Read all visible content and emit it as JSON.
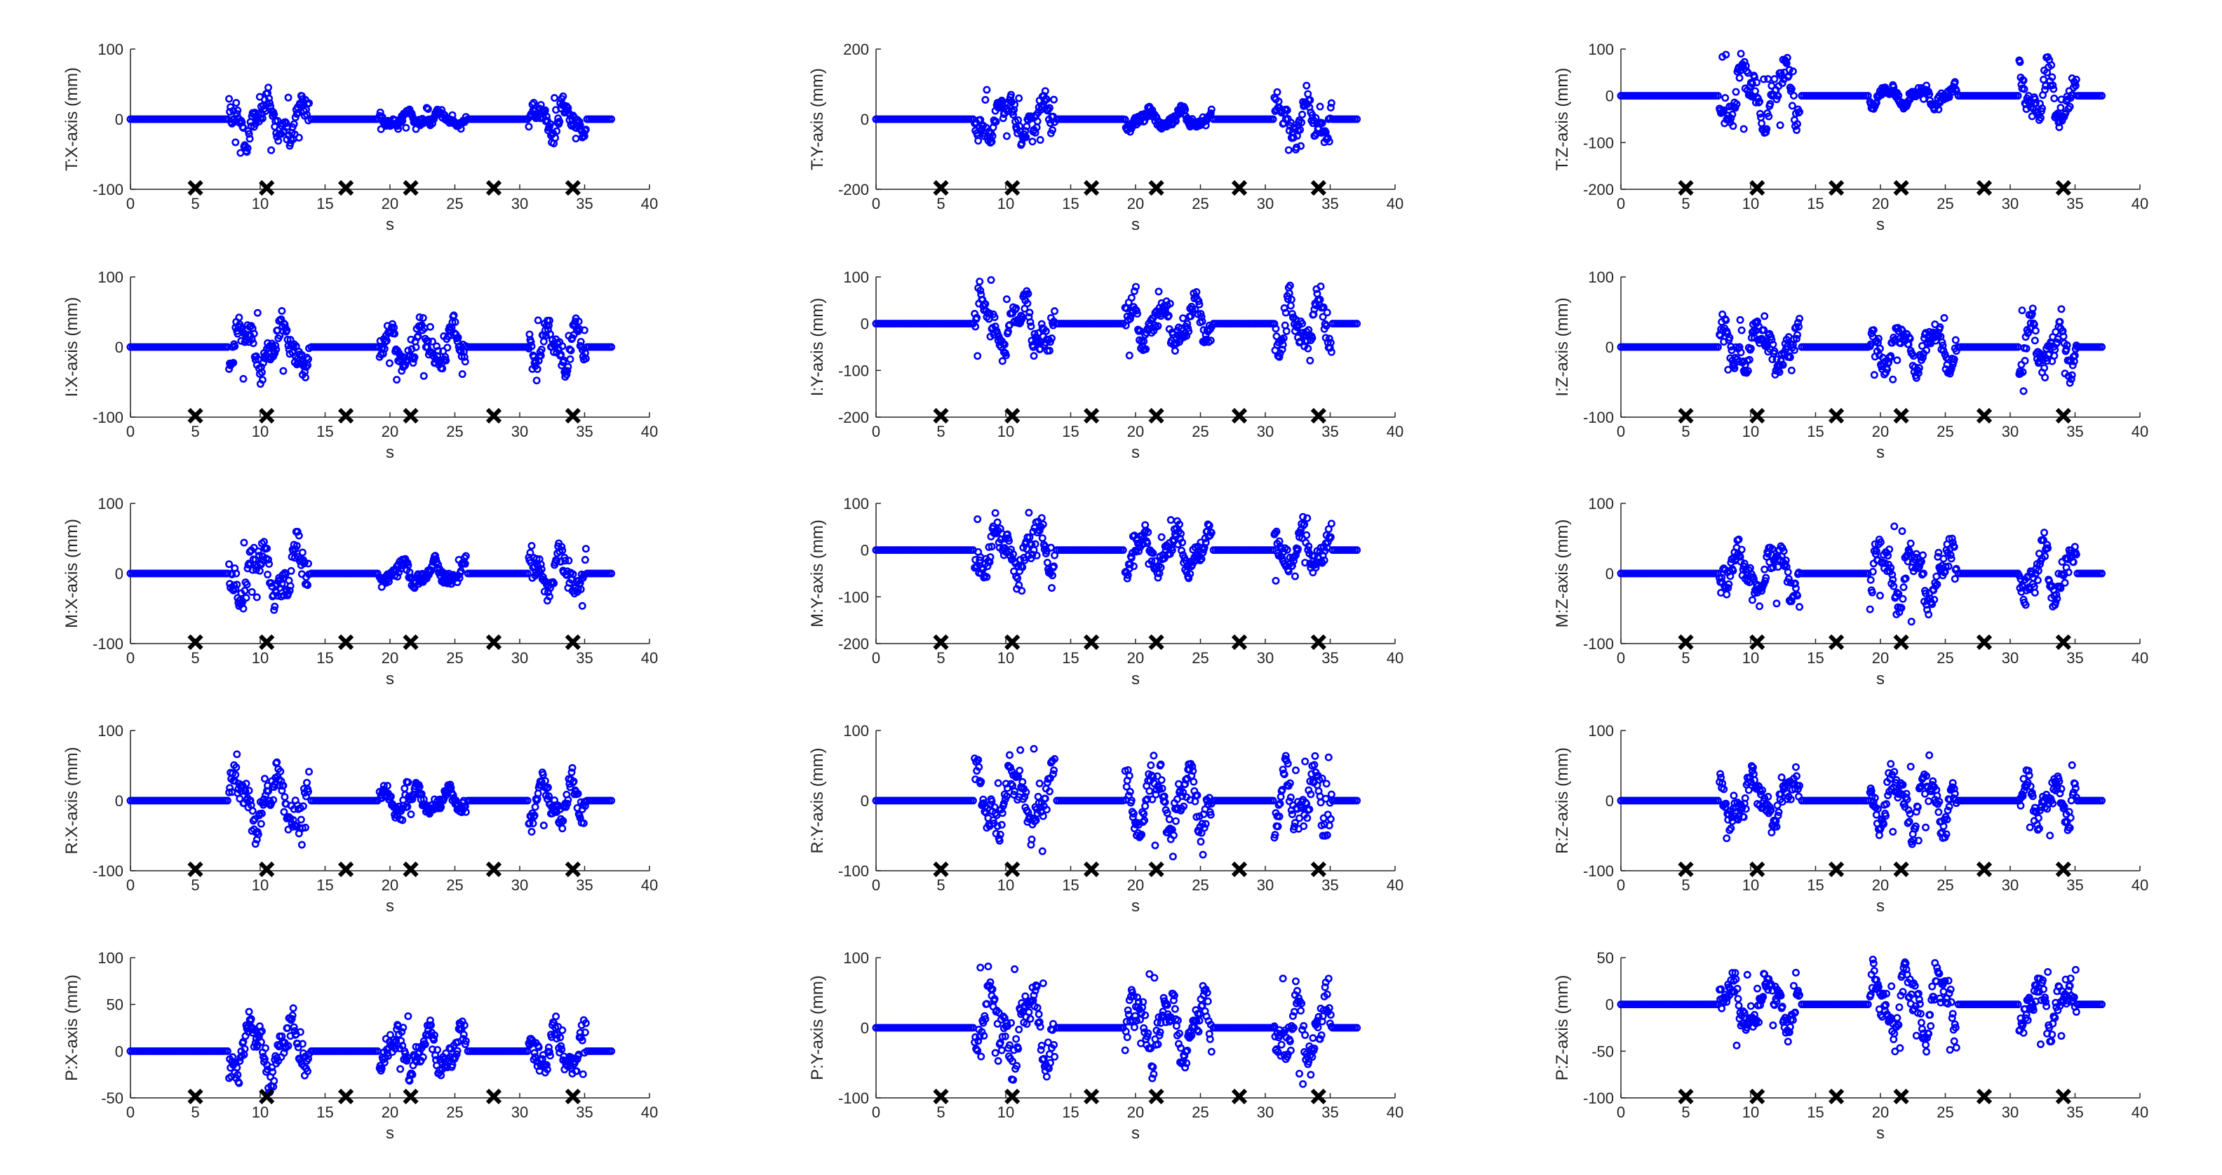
{
  "chart_data": {
    "type": "scatter",
    "layout": "grid of 5 rows by 3 columns",
    "series_color": "#0000ff",
    "marker_color": "#000000",
    "xlabel": "s",
    "xlim": [
      0,
      40
    ],
    "xticks": [
      0,
      5,
      10,
      15,
      20,
      25,
      30,
      35,
      40
    ],
    "x_markers": [
      5,
      10.5,
      16.6,
      21.6,
      28,
      34.1
    ],
    "activity_x_mask": [
      [
        7.6,
        13.8
      ],
      [
        19.2,
        25.9
      ],
      [
        30.7,
        35.1
      ]
    ],
    "panels": [
      {
        "ylabel": "T:X-axis (mm)",
        "ylim": [
          -100,
          100
        ],
        "yticks": [
          -100,
          0,
          100
        ],
        "amp": [
          55,
          18,
          42
        ],
        "seed": 11
      },
      {
        "ylabel": "T:Y-axis (mm)",
        "ylim": [
          -200,
          200
        ],
        "yticks": [
          -200,
          0,
          200
        ],
        "amp": [
          100,
          45,
          110
        ],
        "seed": 12
      },
      {
        "ylabel": "T:Z-axis (mm)",
        "ylim": [
          -200,
          100
        ],
        "yticks": [
          -200,
          -100,
          0,
          100
        ],
        "amp": [
          110,
          35,
          100
        ],
        "seed": 13
      },
      {
        "ylabel": "I:X-axis (mm)",
        "ylim": [
          -100,
          100
        ],
        "yticks": [
          -100,
          0,
          100
        ],
        "amp": [
          60,
          52,
          55
        ],
        "seed": 21
      },
      {
        "ylabel": "I:Y-axis (mm)",
        "ylim": [
          -200,
          100
        ],
        "yticks": [
          -200,
          -100,
          0,
          100
        ],
        "amp": [
          110,
          80,
          100
        ],
        "seed": 22
      },
      {
        "ylabel": "I:Z-axis (mm)",
        "ylim": [
          -100,
          100
        ],
        "yticks": [
          -100,
          0,
          100
        ],
        "amp": [
          55,
          50,
          65
        ],
        "seed": 23
      },
      {
        "ylabel": "M:X-axis (mm)",
        "ylim": [
          -100,
          100
        ],
        "yticks": [
          -100,
          0,
          100
        ],
        "amp": [
          70,
          30,
          55
        ],
        "seed": 31
      },
      {
        "ylabel": "M:Y-axis (mm)",
        "ylim": [
          -200,
          100
        ],
        "yticks": [
          -200,
          -100,
          0,
          100
        ],
        "amp": [
          95,
          75,
          80
        ],
        "seed": 32
      },
      {
        "ylabel": "M:Z-axis (mm)",
        "ylim": [
          -100,
          100
        ],
        "yticks": [
          -100,
          0,
          100
        ],
        "amp": [
          60,
          75,
          70
        ],
        "seed": 33
      },
      {
        "ylabel": "R:X-axis (mm)",
        "ylim": [
          -100,
          100
        ],
        "yticks": [
          -100,
          0,
          100
        ],
        "amp": [
          75,
          30,
          55
        ],
        "seed": 41
      },
      {
        "ylabel": "R:Y-axis (mm)",
        "ylim": [
          -100,
          100
        ],
        "yticks": [
          -100,
          0,
          100
        ],
        "amp": [
          75,
          80,
          75
        ],
        "seed": 42
      },
      {
        "ylabel": "R:Z-axis (mm)",
        "ylim": [
          -100,
          100
        ],
        "yticks": [
          -100,
          0,
          100
        ],
        "amp": [
          60,
          65,
          55
        ],
        "seed": 43
      },
      {
        "ylabel": "P:X-axis (mm)",
        "ylim": [
          -50,
          100
        ],
        "yticks": [
          -50,
          0,
          50,
          100
        ],
        "amp": [
          55,
          40,
          45
        ],
        "seed": 51
      },
      {
        "ylabel": "P:Y-axis (mm)",
        "ylim": [
          -100,
          100
        ],
        "yticks": [
          -100,
          0,
          100
        ],
        "amp": [
          90,
          80,
          85
        ],
        "seed": 52
      },
      {
        "ylabel": "P:Z-axis (mm)",
        "ylim": [
          -100,
          50
        ],
        "yticks": [
          -100,
          -50,
          0,
          50
        ],
        "amp": [
          45,
          60,
          50
        ],
        "seed": 53
      }
    ]
  }
}
